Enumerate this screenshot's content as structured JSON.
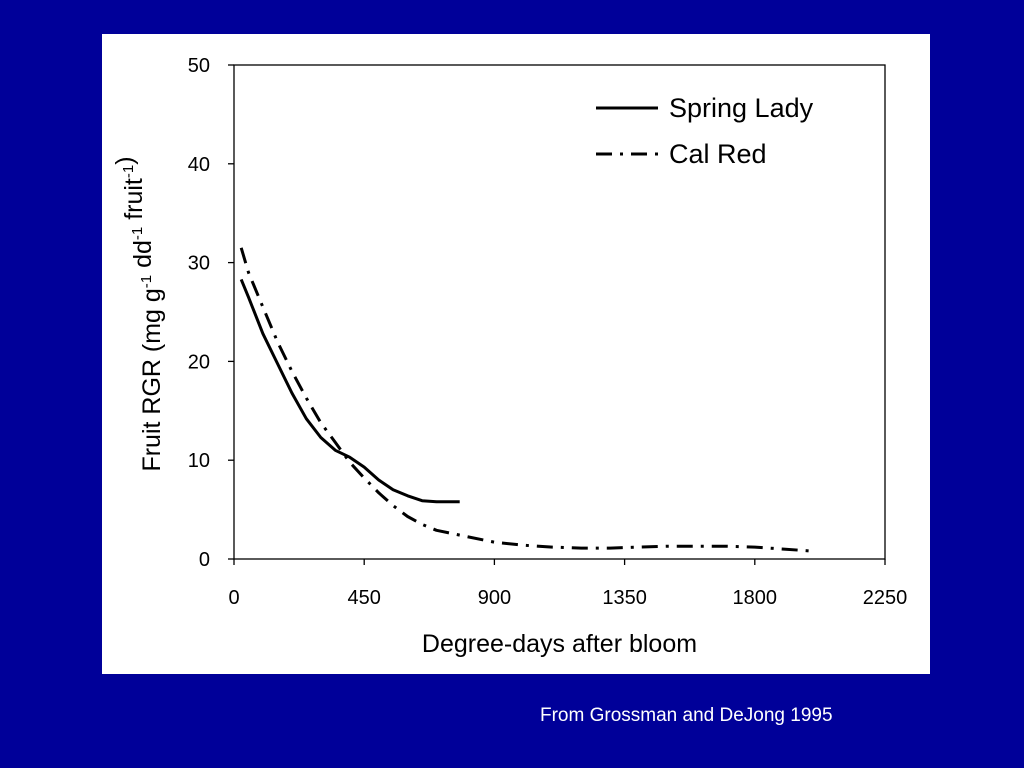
{
  "chart_data": {
    "type": "line",
    "xlabel": "Degree-days after bloom",
    "ylabel": {
      "parts": [
        {
          "t": "Fruit RGR (mg g",
          "sup": false
        },
        {
          "t": "-1",
          "sup": true
        },
        {
          "t": " dd",
          "sup": false
        },
        {
          "t": "-1",
          "sup": true
        },
        {
          "t": " fruit",
          "sup": false
        },
        {
          "t": "-1",
          "sup": true
        },
        {
          "t": ")",
          "sup": false
        }
      ]
    },
    "xlim": [
      0,
      2250
    ],
    "ylim": [
      0,
      50
    ],
    "xticks": [
      0,
      450,
      900,
      1350,
      1800,
      2250
    ],
    "yticks": [
      0,
      10,
      20,
      30,
      40,
      50
    ],
    "grid": false,
    "legend_position": "top-right",
    "series": [
      {
        "name": "Spring Lady",
        "style": "solid",
        "color": "#000000",
        "x": [
          25,
          50,
          100,
          150,
          200,
          250,
          300,
          350,
          400,
          450,
          500,
          550,
          600,
          650,
          700,
          750,
          780
        ],
        "y": [
          28.3,
          26.5,
          22.8,
          19.8,
          16.8,
          14.2,
          12.3,
          11.0,
          10.3,
          9.3,
          8.0,
          7.0,
          6.4,
          5.9,
          5.8,
          5.8,
          5.8
        ]
      },
      {
        "name": "Cal Red",
        "style": "dash-dot",
        "color": "#000000",
        "x": [
          25,
          50,
          100,
          150,
          200,
          250,
          300,
          350,
          400,
          450,
          500,
          550,
          600,
          650,
          700,
          800,
          900,
          1000,
          1100,
          1200,
          1300,
          1400,
          1500,
          1600,
          1700,
          1800,
          1900,
          2000
        ],
        "y": [
          31.5,
          29.0,
          25.5,
          22.0,
          19.0,
          16.3,
          13.8,
          11.8,
          9.8,
          8.2,
          6.7,
          5.4,
          4.3,
          3.5,
          2.9,
          2.3,
          1.7,
          1.4,
          1.2,
          1.1,
          1.1,
          1.2,
          1.3,
          1.3,
          1.3,
          1.2,
          1.0,
          0.8
        ]
      }
    ]
  },
  "footer": {
    "source": "From Grossman and DeJong 1995"
  }
}
